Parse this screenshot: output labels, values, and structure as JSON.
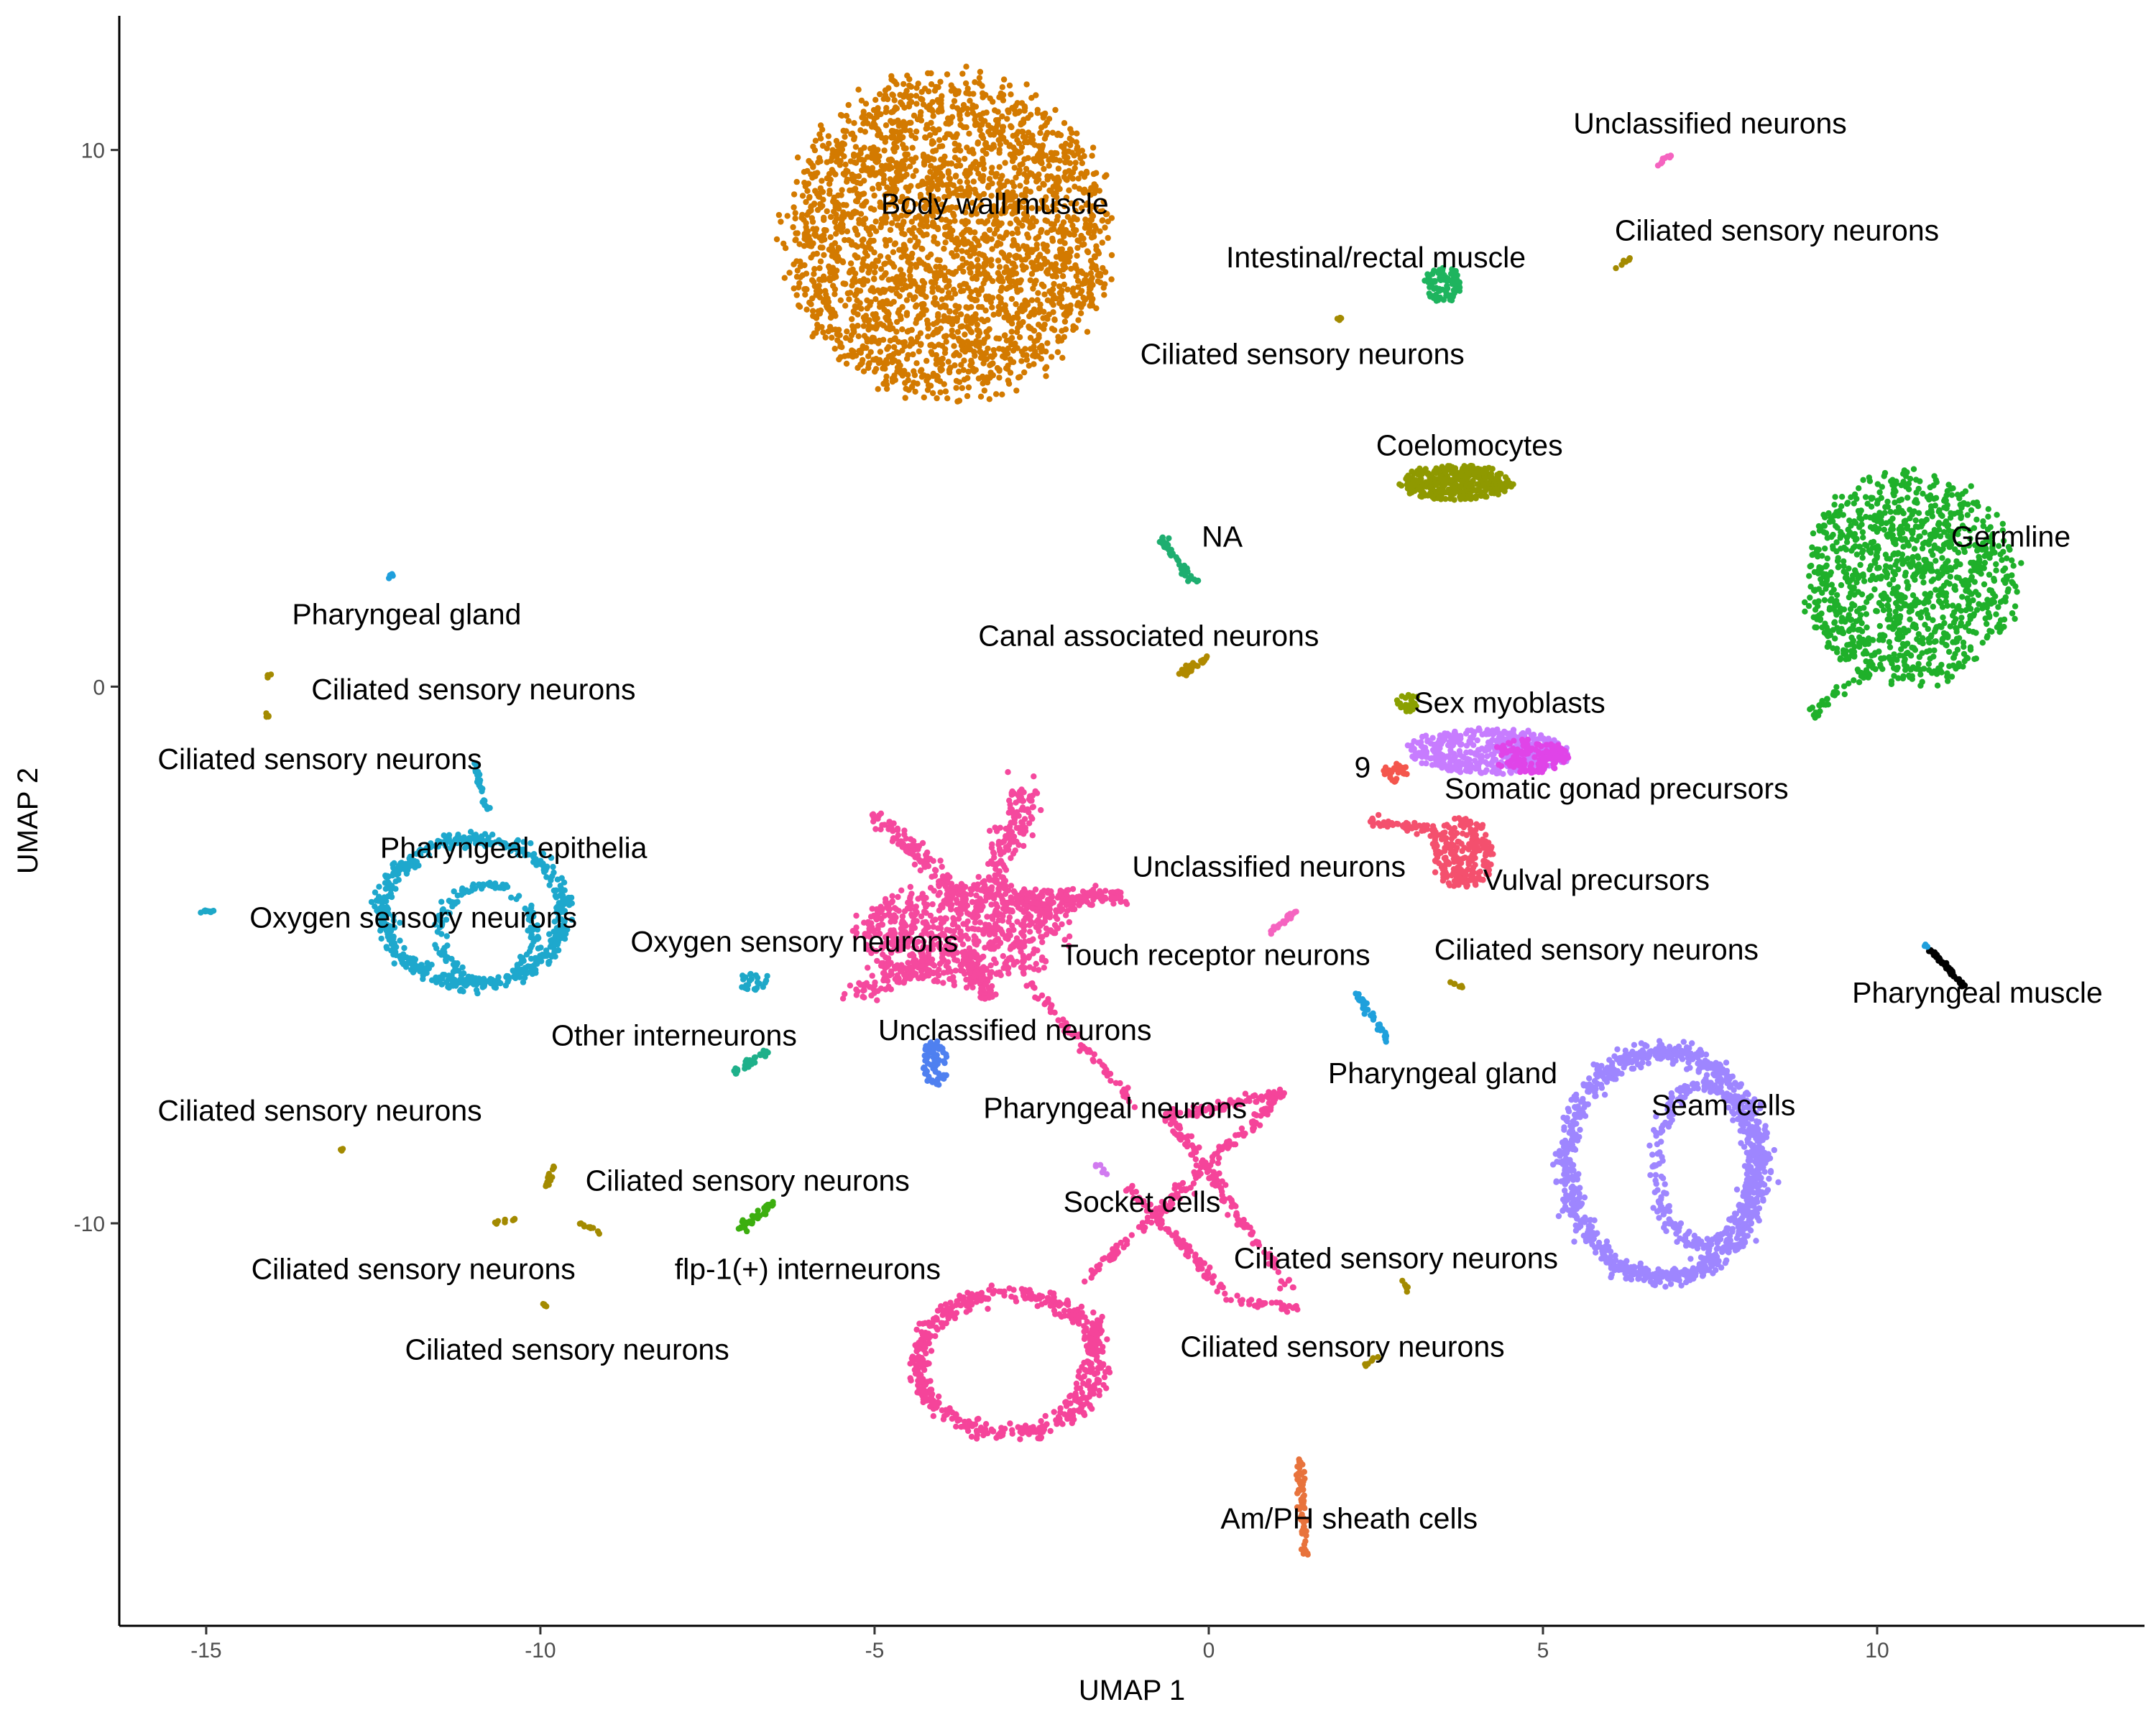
{
  "chart_data": {
    "type": "scatter",
    "xlabel": "UMAP 1",
    "ylabel": "UMAP 2",
    "xlim": [
      -16.3,
      14.0
    ],
    "ylim": [
      -17.5,
      12.5
    ],
    "xticks": [
      {
        "v": -15,
        "label": "-15"
      },
      {
        "v": -10,
        "label": "-10"
      },
      {
        "v": -5,
        "label": "-5"
      },
      {
        "v": 0,
        "label": "0"
      },
      {
        "v": 5,
        "label": "5"
      },
      {
        "v": 10,
        "label": "10"
      }
    ],
    "yticks": [
      {
        "v": -10,
        "label": "-10"
      },
      {
        "v": 0,
        "label": "0"
      },
      {
        "v": 10,
        "label": "10"
      }
    ],
    "grid": false,
    "legend": "none",
    "clusters": [
      {
        "id": "body-wall-muscle",
        "color": "#D37A00",
        "shape": "blob",
        "cx": -3.9,
        "cy": 8.4,
        "rx": 2.6,
        "ry": 3.2,
        "n": 2600
      },
      {
        "id": "germline",
        "color": "#1FB02A",
        "shape": "blob",
        "cx": 10.5,
        "cy": 2.0,
        "rx": 1.7,
        "ry": 2.1,
        "n": 1100
      },
      {
        "id": "germline-tail",
        "color": "#1FB02A",
        "shape": "line",
        "x1": 9.0,
        "y1": -0.5,
        "x2": 9.9,
        "y2": 0.3,
        "w": 0.12,
        "n": 40
      },
      {
        "id": "coelomocytes",
        "color": "#8F9900",
        "shape": "blob",
        "cx": 3.7,
        "cy": 3.8,
        "rx": 0.9,
        "ry": 0.35,
        "n": 380
      },
      {
        "id": "intestinal-rectal-muscle",
        "color": "#1EB45E",
        "shape": "blob",
        "cx": 3.5,
        "cy": 7.5,
        "rx": 0.3,
        "ry": 0.35,
        "n": 90
      },
      {
        "id": "na",
        "color": "#1EAE70",
        "shape": "line",
        "x1": -0.7,
        "y1": 2.8,
        "x2": -0.2,
        "y2": 1.9,
        "w": 0.1,
        "n": 40
      },
      {
        "id": "canal-associated-neurons",
        "color": "#B08A00",
        "shape": "line",
        "x1": -0.4,
        "y1": 0.25,
        "x2": 0.0,
        "y2": 0.55,
        "w": 0.08,
        "n": 30
      },
      {
        "id": "unclassified-neurons-top",
        "color": "#F564C0",
        "shape": "line",
        "x1": 6.7,
        "y1": 9.7,
        "x2": 6.9,
        "y2": 9.9,
        "w": 0.05,
        "n": 10
      },
      {
        "id": "ciliated-top-right",
        "color": "#A38A00",
        "shape": "line",
        "x1": 6.1,
        "y1": 7.8,
        "x2": 6.3,
        "y2": 8.0,
        "w": 0.05,
        "n": 8
      },
      {
        "id": "ciliated-top-mid",
        "color": "#A38A00",
        "shape": "line",
        "x1": 1.9,
        "y1": 6.8,
        "x2": 2.0,
        "y2": 6.9,
        "w": 0.04,
        "n": 5
      },
      {
        "id": "sex-myoblasts",
        "color": "#8AA000",
        "shape": "blob",
        "cx": 3.0,
        "cy": -0.3,
        "rx": 0.2,
        "ry": 0.2,
        "n": 25
      },
      {
        "id": "somatic-gonad-purple",
        "color": "#C77CFF",
        "shape": "blob",
        "cx": 4.2,
        "cy": -1.2,
        "rx": 1.3,
        "ry": 0.45,
        "n": 420
      },
      {
        "id": "somatic-gonad-magenta",
        "color": "#E044E8",
        "shape": "blob",
        "cx": 4.8,
        "cy": -1.3,
        "rx": 0.6,
        "ry": 0.35,
        "n": 140
      },
      {
        "id": "cluster-9",
        "color": "#F4564D",
        "shape": "blob",
        "cx": 2.8,
        "cy": -1.6,
        "rx": 0.2,
        "ry": 0.2,
        "n": 30
      },
      {
        "id": "vulval-precursors",
        "color": "#F4506E",
        "shape": "blob",
        "cx": 3.8,
        "cy": -3.1,
        "rx": 0.5,
        "ry": 0.75,
        "n": 230
      },
      {
        "id": "vulval-arm",
        "color": "#F4506E",
        "shape": "line",
        "x1": 2.4,
        "y1": -2.5,
        "x2": 3.4,
        "y2": -2.7,
        "w": 0.12,
        "n": 50
      },
      {
        "id": "unclassified-neurons-mid",
        "color": "#F564C0",
        "shape": "line",
        "x1": 0.9,
        "y1": -4.6,
        "x2": 1.3,
        "y2": -4.2,
        "w": 0.06,
        "n": 25
      },
      {
        "id": "pharyngeal-gland-right",
        "color": "#1FA0DC",
        "shape": "line",
        "x1": 2.2,
        "y1": -5.7,
        "x2": 2.7,
        "y2": -6.6,
        "w": 0.07,
        "n": 35
      },
      {
        "id": "ciliated-mid-right",
        "color": "#A38A00",
        "shape": "line",
        "x1": 3.6,
        "y1": -5.5,
        "x2": 3.8,
        "y2": -5.6,
        "w": 0.04,
        "n": 6
      },
      {
        "id": "pharyngeal-muscle",
        "color": "#000000",
        "shape": "line",
        "x1": 10.8,
        "y1": -4.9,
        "x2": 11.3,
        "y2": -5.6,
        "w": 0.04,
        "n": 60
      },
      {
        "id": "pharyngeal-muscle-tip",
        "color": "#1F9FDC",
        "shape": "line",
        "x1": 10.7,
        "y1": -4.8,
        "x2": 10.8,
        "y2": -4.9,
        "w": 0.03,
        "n": 4
      },
      {
        "id": "seam-cells",
        "color": "#9E86FF",
        "shape": "ring",
        "cx": 6.8,
        "cy": -8.9,
        "rx": 1.45,
        "ry": 2.1,
        "w": 0.18,
        "n": 900
      },
      {
        "id": "seam-cells-inner",
        "color": "#9E86FF",
        "shape": "ring",
        "cx": 7.4,
        "cy": -8.9,
        "rx": 0.7,
        "ry": 1.5,
        "w": 0.12,
        "n": 300
      },
      {
        "id": "am-ph-sheath-cells",
        "color": "#E8733C",
        "shape": "line",
        "x1": 1.35,
        "y1": -14.4,
        "x2": 1.45,
        "y2": -16.2,
        "w": 0.08,
        "n": 70
      },
      {
        "id": "ciliated-bottom-mid",
        "color": "#A38A00",
        "shape": "line",
        "x1": 2.3,
        "y1": -12.7,
        "x2": 2.5,
        "y2": -12.5,
        "w": 0.04,
        "n": 8
      },
      {
        "id": "ciliated-right-low",
        "color": "#A38A00",
        "shape": "line",
        "x1": 2.9,
        "y1": -11.0,
        "x2": 3.0,
        "y2": -11.3,
        "w": 0.04,
        "n": 8
      },
      {
        "id": "pharyngeal-epithelia",
        "color": "#1EA8CD",
        "shape": "ring",
        "cx": -11.0,
        "cy": -4.2,
        "rx": 1.35,
        "ry": 1.35,
        "w": 0.14,
        "n": 500
      },
      {
        "id": "pharyngeal-epithelia-inner",
        "color": "#1EA8CD",
        "shape": "ring",
        "cx": -10.8,
        "cy": -4.6,
        "rx": 0.7,
        "ry": 0.9,
        "w": 0.1,
        "n": 160
      },
      {
        "id": "pharyngeal-epithelia-stalk",
        "color": "#1EA8CD",
        "shape": "line",
        "x1": -11.0,
        "y1": -1.4,
        "x2": -10.8,
        "y2": -2.3,
        "w": 0.05,
        "n": 25
      },
      {
        "id": "pharyngeal-gland-left",
        "color": "#1F9FDC",
        "shape": "line",
        "x1": -12.3,
        "y1": 2.0,
        "x2": -12.2,
        "y2": 2.1,
        "w": 0.04,
        "n": 8
      },
      {
        "id": "ciliated-left-top",
        "color": "#A38A00",
        "shape": "line",
        "x1": -14.1,
        "y1": 0.2,
        "x2": -14.0,
        "y2": 0.25,
        "w": 0.03,
        "n": 5
      },
      {
        "id": "ciliated-left-top2",
        "color": "#A38A00",
        "shape": "line",
        "x1": -14.1,
        "y1": -0.5,
        "x2": -14.05,
        "y2": -0.6,
        "w": 0.03,
        "n": 4
      },
      {
        "id": "oxygen-sensory-left",
        "color": "#1EA8C8",
        "shape": "line",
        "x1": -15.1,
        "y1": -4.2,
        "x2": -14.9,
        "y2": -4.2,
        "w": 0.04,
        "n": 10
      },
      {
        "id": "oxygen-sensory-mid",
        "color": "#1EA8C8",
        "shape": "blob",
        "cx": -6.8,
        "cy": -5.5,
        "rx": 0.25,
        "ry": 0.2,
        "n": 25
      },
      {
        "id": "other-interneurons",
        "color": "#1EB08A",
        "shape": "line",
        "x1": -7.1,
        "y1": -7.2,
        "x2": -6.6,
        "y2": -6.8,
        "w": 0.07,
        "n": 35
      },
      {
        "id": "pharyngeal-neurons",
        "color": "#4F80F0",
        "shape": "blob",
        "cx": -4.1,
        "cy": -7.0,
        "rx": 0.22,
        "ry": 0.45,
        "n": 70
      },
      {
        "id": "flp-1-interneurons",
        "color": "#3CAE0F",
        "shape": "line",
        "x1": -7.0,
        "y1": -10.1,
        "x2": -6.5,
        "y2": -9.6,
        "w": 0.08,
        "n": 40
      },
      {
        "id": "ciliated-left-b1",
        "color": "#A38A00",
        "shape": "line",
        "x1": -13.0,
        "y1": -8.6,
        "x2": -12.95,
        "y2": -8.65,
        "w": 0.03,
        "n": 3
      },
      {
        "id": "ciliated-left-b2",
        "color": "#A38A00",
        "shape": "line",
        "x1": -9.9,
        "y1": -9.3,
        "x2": -9.8,
        "y2": -8.9,
        "w": 0.05,
        "n": 15
      },
      {
        "id": "ciliated-left-b3",
        "color": "#A38A00",
        "shape": "line",
        "x1": -10.7,
        "y1": -10.0,
        "x2": -10.3,
        "y2": -9.9,
        "w": 0.04,
        "n": 10
      },
      {
        "id": "ciliated-left-b4",
        "color": "#A38A00",
        "shape": "line",
        "x1": -9.4,
        "y1": -10.0,
        "x2": -9.1,
        "y2": -10.2,
        "w": 0.04,
        "n": 10
      },
      {
        "id": "ciliated-left-b5",
        "color": "#A38A00",
        "shape": "line",
        "x1": -9.95,
        "y1": -11.5,
        "x2": -9.9,
        "y2": -11.55,
        "w": 0.03,
        "n": 4
      },
      {
        "id": "socket-cells-purple",
        "color": "#D17BF0",
        "shape": "line",
        "x1": -1.7,
        "y1": -8.9,
        "x2": -1.5,
        "y2": -9.1,
        "w": 0.04,
        "n": 8
      },
      {
        "id": "neurons-star-core",
        "color": "#F5499E",
        "shape": "blob",
        "cx": -3.7,
        "cy": -4.6,
        "rx": 1.7,
        "ry": 1.0,
        "n": 700
      },
      {
        "id": "neurons-star-arm-ul",
        "color": "#F5499E",
        "shape": "line",
        "x1": -5.0,
        "y1": -2.4,
        "x2": -3.6,
        "y2": -4.0,
        "w": 0.22,
        "n": 120
      },
      {
        "id": "neurons-star-arm-ur",
        "color": "#F5499E",
        "shape": "line",
        "x1": -2.7,
        "y1": -1.9,
        "x2": -3.3,
        "y2": -4.0,
        "w": 0.3,
        "n": 160
      },
      {
        "id": "neurons-star-arm-r",
        "color": "#F5499E",
        "shape": "line",
        "x1": -3.0,
        "y1": -4.0,
        "x2": -1.3,
        "y2": -3.9,
        "w": 0.25,
        "n": 160
      },
      {
        "id": "neurons-star-arm-dl",
        "color": "#F5499E",
        "shape": "line",
        "x1": -4.0,
        "y1": -5.0,
        "x2": -5.3,
        "y2": -5.7,
        "w": 0.25,
        "n": 110
      },
      {
        "id": "neurons-star-arm-d",
        "color": "#F5499E",
        "shape": "line",
        "x1": -3.6,
        "y1": -5.0,
        "x2": -3.3,
        "y2": -5.8,
        "w": 0.22,
        "n": 80
      },
      {
        "id": "neurons-trail-1",
        "color": "#F5449A",
        "shape": "line",
        "x1": -2.7,
        "y1": -5.5,
        "x2": -1.1,
        "y2": -7.8,
        "w": 0.08,
        "n": 70
      },
      {
        "id": "socket-upper-x",
        "color": "#F5449A",
        "shape": "line",
        "x1": -0.6,
        "y1": -8.0,
        "x2": 1.1,
        "y2": -7.6,
        "w": 0.12,
        "n": 80
      },
      {
        "id": "socket-cross-1",
        "color": "#F5449A",
        "shape": "line",
        "x1": 1.1,
        "y1": -7.6,
        "x2": -0.6,
        "y2": -9.6,
        "w": 0.12,
        "n": 90
      },
      {
        "id": "socket-cross-2",
        "color": "#F5449A",
        "shape": "line",
        "x1": -0.6,
        "y1": -8.0,
        "x2": 1.2,
        "y2": -11.2,
        "w": 0.12,
        "n": 120
      },
      {
        "id": "socket-cross-3",
        "color": "#F5449A",
        "shape": "line",
        "x1": -1.2,
        "y1": -9.3,
        "x2": 0.3,
        "y2": -11.4,
        "w": 0.12,
        "n": 80
      },
      {
        "id": "socket-cross-4",
        "color": "#F5449A",
        "shape": "line",
        "x1": 0.3,
        "y1": -11.4,
        "x2": 1.3,
        "y2": -11.6,
        "w": 0.1,
        "n": 30
      },
      {
        "id": "socket-cross-5",
        "color": "#F5449A",
        "shape": "line",
        "x1": -1.8,
        "y1": -11.0,
        "x2": -0.6,
        "y2": -9.6,
        "w": 0.12,
        "n": 60
      },
      {
        "id": "socket-loop",
        "color": "#F5449A",
        "shape": "ring",
        "cx": -3.0,
        "cy": -12.6,
        "rx": 1.35,
        "ry": 1.3,
        "w": 0.16,
        "n": 500
      },
      {
        "id": "socket-loop-tail",
        "color": "#F5449A",
        "shape": "line",
        "x1": -2.0,
        "y1": -13.3,
        "x2": -1.6,
        "y2": -11.7,
        "w": 0.12,
        "n": 50
      }
    ],
    "annotations": [
      {
        "text": "Body wall muscle",
        "x": -3.2,
        "y": 9.0
      },
      {
        "text": "Unclassified neurons",
        "x": 7.5,
        "y": 10.5
      },
      {
        "text": "Ciliated sensory neurons",
        "x": 8.5,
        "y": 8.5
      },
      {
        "text": "Intestinal/rectal muscle",
        "x": 2.5,
        "y": 8.0
      },
      {
        "text": "Ciliated sensory neurons",
        "x": 1.4,
        "y": 6.2
      },
      {
        "text": "Coelomocytes",
        "x": 3.9,
        "y": 4.5
      },
      {
        "text": "Germline",
        "x": 12.0,
        "y": 2.8
      },
      {
        "text": "NA",
        "x": 0.2,
        "y": 2.8
      },
      {
        "text": "Pharyngeal gland",
        "x": -12.0,
        "y": 1.35
      },
      {
        "text": "Canal associated neurons",
        "x": -0.9,
        "y": 0.95
      },
      {
        "text": "Ciliated sensory neurons",
        "x": -11.0,
        "y": -0.05
      },
      {
        "text": "Sex myoblasts",
        "x": 4.5,
        "y": -0.3
      },
      {
        "text": "Ciliated sensory neurons",
        "x": -13.3,
        "y": -1.35
      },
      {
        "text": "9",
        "x": 2.3,
        "y": -1.5
      },
      {
        "text": "Somatic gonad precursors",
        "x": 6.1,
        "y": -1.9
      },
      {
        "text": "Pharyngeal epithelia",
        "x": -10.4,
        "y": -3.0
      },
      {
        "text": "Unclassified neurons",
        "x": 0.9,
        "y": -3.35
      },
      {
        "text": "Vulval precursors",
        "x": 5.8,
        "y": -3.6
      },
      {
        "text": "Oxygen sensory neurons",
        "x": -11.9,
        "y": -4.3
      },
      {
        "text": "Oxygen sensory neurons",
        "x": -6.2,
        "y": -4.75
      },
      {
        "text": "Touch receptor neurons",
        "x": 0.1,
        "y": -5.0
      },
      {
        "text": "Ciliated sensory neurons",
        "x": 5.8,
        "y": -4.9
      },
      {
        "text": "Pharyngeal muscle",
        "x": 11.5,
        "y": -5.7
      },
      {
        "text": "Unclassified neurons",
        "x": -2.9,
        "y": -6.4
      },
      {
        "text": "Other interneurons",
        "x": -8.0,
        "y": -6.5
      },
      {
        "text": "Pharyngeal gland",
        "x": 3.5,
        "y": -7.2
      },
      {
        "text": "Seam cells",
        "x": 7.7,
        "y": -7.8
      },
      {
        "text": "Pharyngeal neurons",
        "x": -1.4,
        "y": -7.85
      },
      {
        "text": "Ciliated sensory neurons",
        "x": -13.3,
        "y": -7.9
      },
      {
        "text": "Ciliated sensory neurons",
        "x": -6.9,
        "y": -9.2
      },
      {
        "text": "Socket cells",
        "x": -1.0,
        "y": -9.6
      },
      {
        "text": "Ciliated sensory neurons",
        "x": -11.9,
        "y": -10.85
      },
      {
        "text": "flp-1(+) interneurons",
        "x": -6.0,
        "y": -10.85
      },
      {
        "text": "Ciliated sensory neurons",
        "x": 2.8,
        "y": -10.65
      },
      {
        "text": "Ciliated sensory neurons",
        "x": -9.6,
        "y": -12.35
      },
      {
        "text": "Ciliated sensory neurons",
        "x": 2.0,
        "y": -12.3
      },
      {
        "text": "Am/PH sheath cells",
        "x": 2.1,
        "y": -15.5
      }
    ]
  }
}
